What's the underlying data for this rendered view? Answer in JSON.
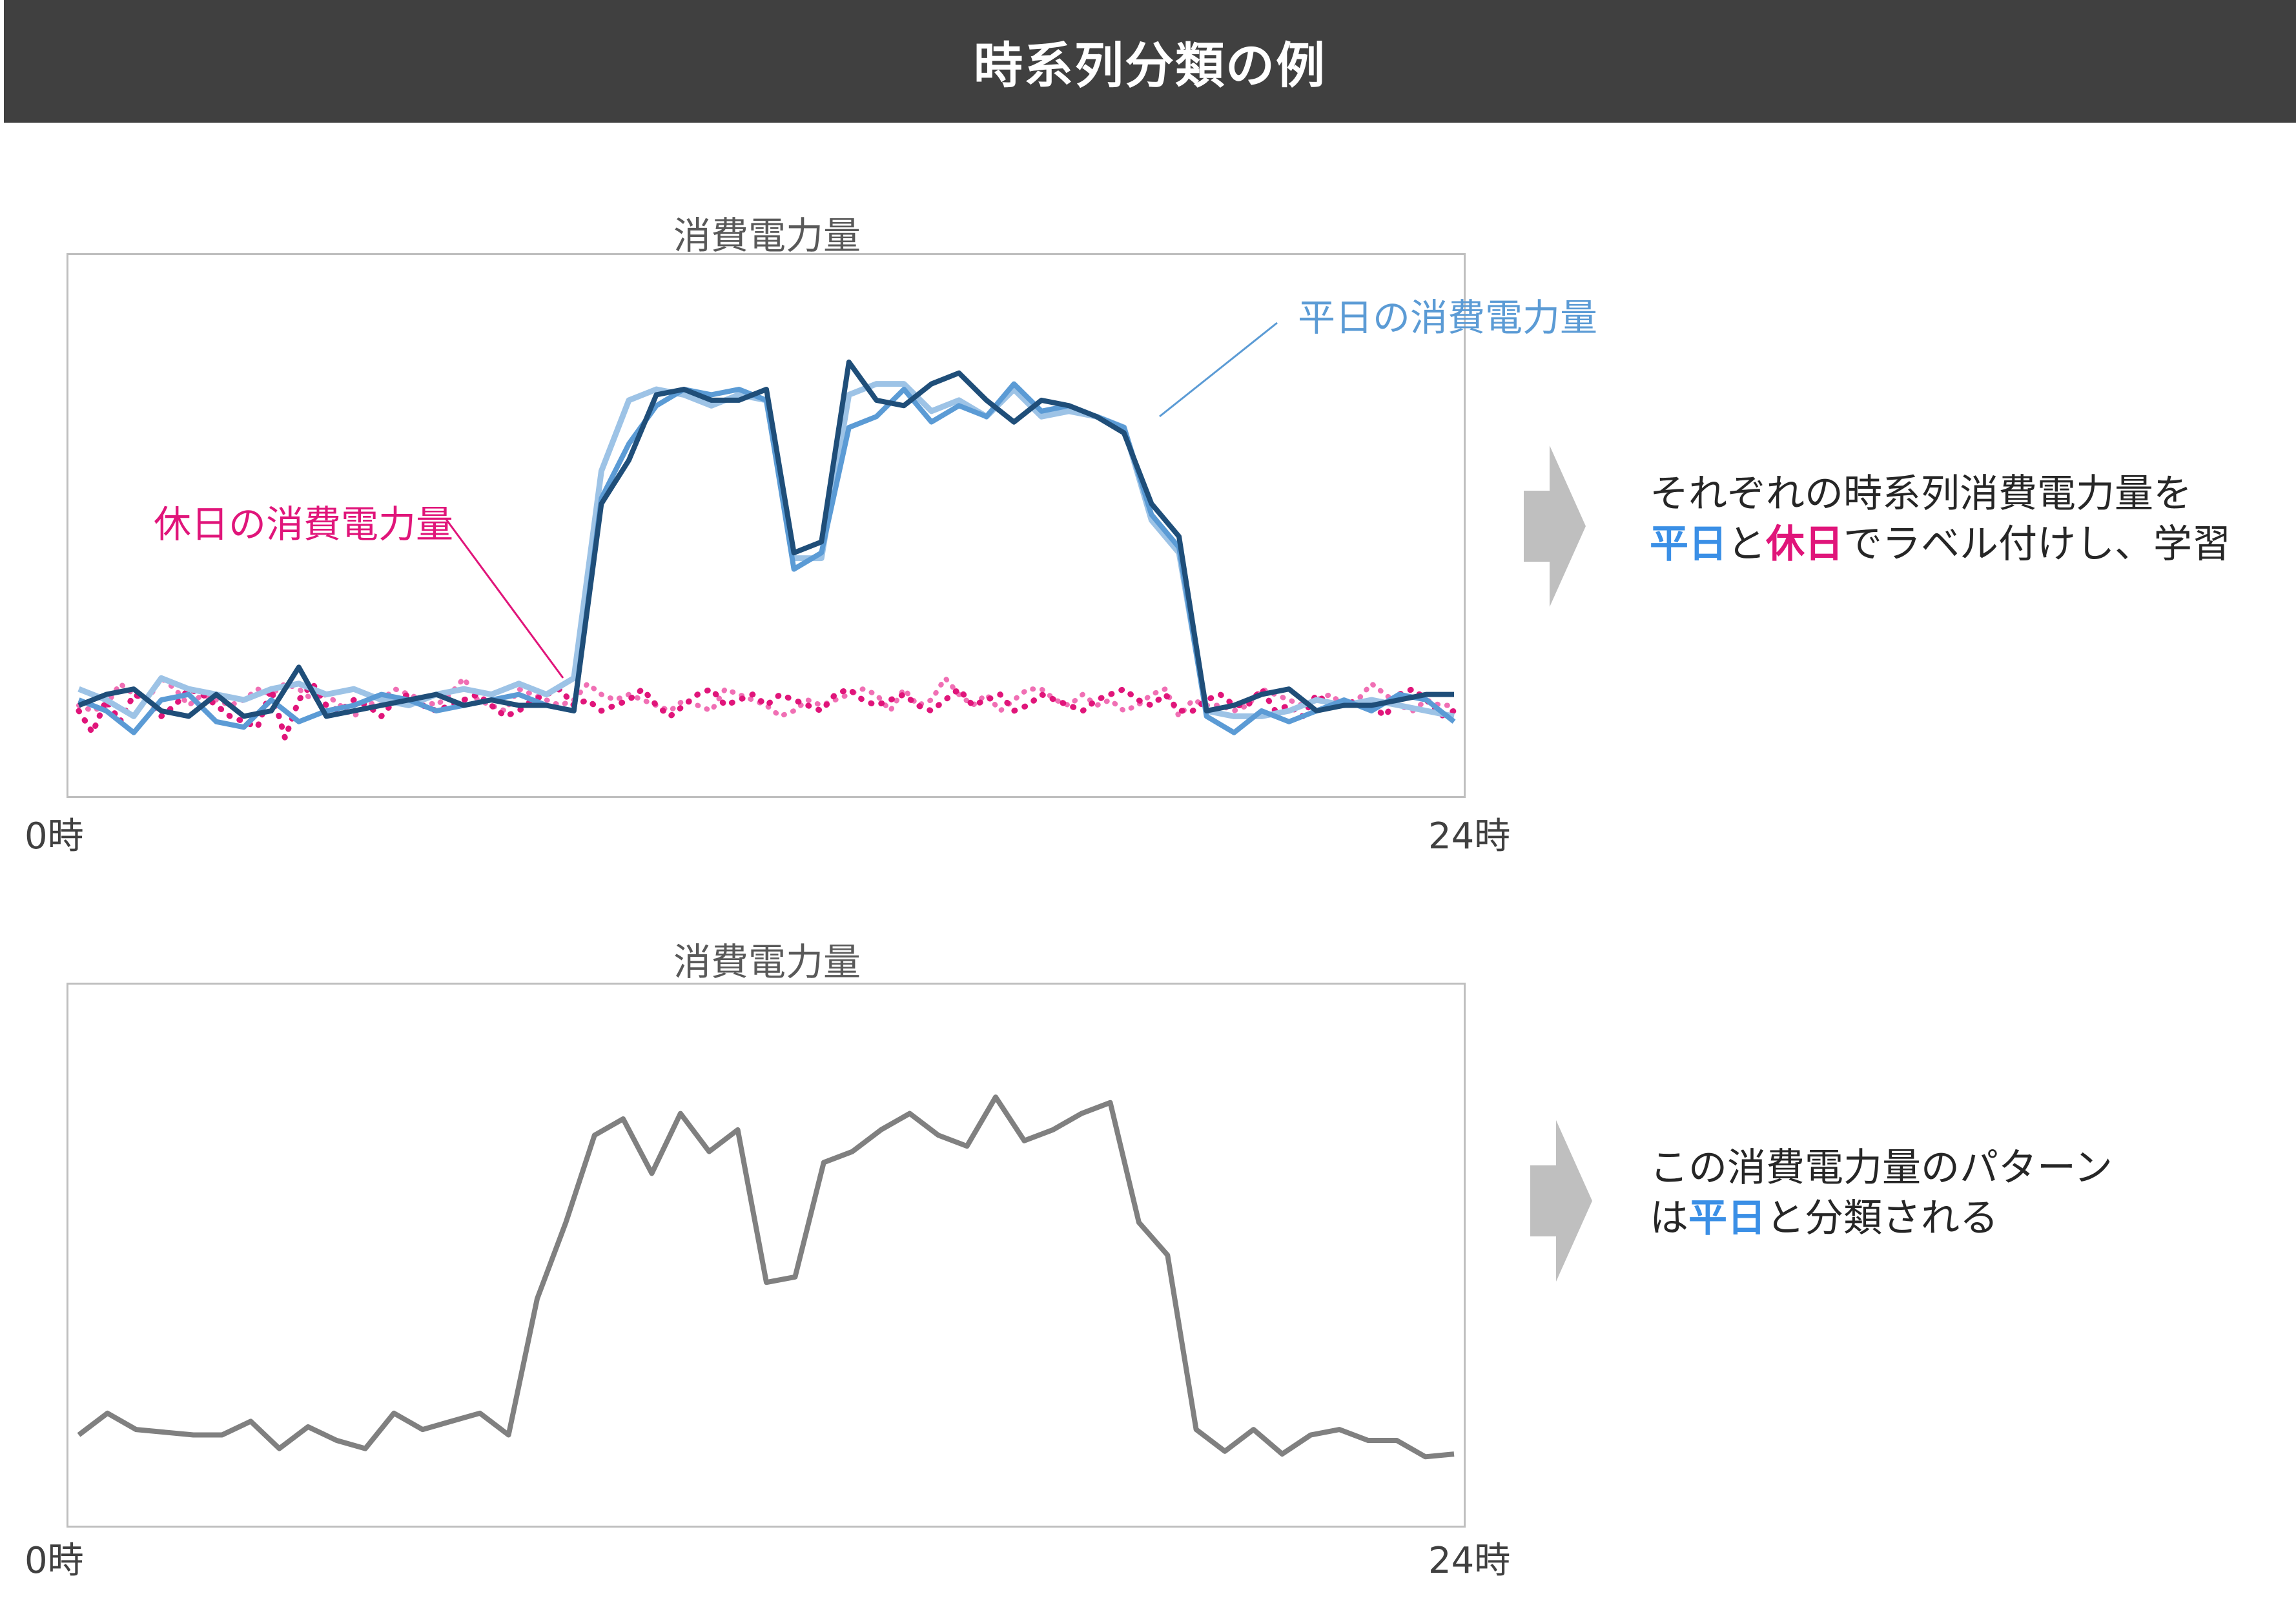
{
  "page": {
    "title": "時系列分類の例"
  },
  "colors": {
    "header_bg": "#404040",
    "weekday_dark": "#1f4e79",
    "weekday_mid": "#5b9bd5",
    "weekday_light": "#9dc3e6",
    "holiday_dark": "#e0157a",
    "holiday_light": "#f06fb4",
    "unknown": "#808080",
    "arrow": "#bfbfbf",
    "highlight_weekday": "#3a8fe6",
    "highlight_holiday": "#e0157a"
  },
  "chart_data": [
    {
      "type": "line",
      "title": "消費電力量",
      "x_start_label": "0時",
      "x_end_label": "24時",
      "legend_weekday": "平日の消費電力量",
      "legend_holiday": "休日の消費電力量",
      "x_range": [
        0,
        24
      ],
      "y_range": [
        0,
        100
      ],
      "grid": false,
      "series": [
        {
          "name": "平日の消費電力量",
          "style": "light",
          "values": [
            20,
            18,
            15,
            22,
            20,
            19,
            18,
            20,
            21,
            19,
            20,
            18,
            17,
            19,
            20,
            19,
            21,
            19,
            22,
            60,
            73,
            75,
            74,
            72,
            74,
            73,
            44,
            44,
            74,
            76,
            76,
            71,
            73,
            70,
            75,
            70,
            71,
            70,
            68,
            51,
            45,
            16,
            15,
            15,
            16,
            18,
            17,
            18,
            17,
            16,
            15
          ]
        },
        {
          "name": "平日の消費電力量",
          "style": "mid",
          "values": [
            18,
            16,
            12,
            18,
            19,
            14,
            13,
            18,
            14,
            16,
            17,
            19,
            18,
            16,
            17,
            18,
            19,
            17,
            16,
            55,
            65,
            72,
            75,
            74,
            75,
            73,
            42,
            45,
            68,
            70,
            75,
            69,
            72,
            70,
            76,
            71,
            72,
            70,
            68,
            52,
            46,
            15,
            12,
            16,
            14,
            16,
            18,
            16,
            19,
            18,
            14
          ]
        },
        {
          "name": "平日の消費電力量",
          "style": "dark",
          "values": [
            17,
            19,
            20,
            16,
            15,
            19,
            15,
            16,
            24,
            15,
            16,
            17,
            18,
            19,
            17,
            18,
            17,
            17,
            16,
            54,
            62,
            74,
            75,
            73,
            73,
            75,
            45,
            47,
            80,
            73,
            72,
            76,
            78,
            73,
            69,
            73,
            72,
            70,
            67,
            54,
            48,
            16,
            17,
            19,
            20,
            16,
            17,
            17,
            18,
            19,
            19
          ]
        }
      ],
      "holiday_series": [
        {
          "name": "休日の消費電力量",
          "style": "light",
          "values": [
            17,
            16,
            17,
            21,
            19,
            18,
            22,
            20,
            17,
            19,
            18,
            17,
            18,
            20,
            19,
            21,
            20,
            18,
            19,
            17,
            15,
            17,
            18,
            20,
            19,
            18,
            17,
            19,
            22,
            18,
            17,
            16,
            20,
            19,
            18,
            17,
            18,
            21,
            19,
            18,
            19,
            18,
            17,
            16,
            18,
            17,
            16,
            20,
            19,
            18,
            17,
            15,
            16,
            18,
            17,
            18,
            19,
            20,
            19,
            16,
            20,
            17,
            18,
            22,
            19,
            17,
            19,
            16,
            18,
            20,
            20,
            18,
            17,
            19,
            17,
            18,
            16,
            17,
            19,
            20,
            15,
            18,
            17,
            17,
            16,
            17,
            20,
            19,
            18,
            17,
            18,
            19,
            17,
            18,
            21,
            19,
            17,
            16,
            18,
            17,
            17
          ]
        },
        {
          "name": "休日の消費電力量",
          "style": "dark",
          "values": [
            16,
            12,
            18,
            14,
            19,
            18,
            15,
            17,
            20,
            19,
            17,
            15,
            14,
            13,
            20,
            11,
            18,
            21,
            17,
            16,
            18,
            17,
            15,
            18,
            19,
            17,
            16,
            17,
            18,
            19,
            17,
            15,
            16,
            18,
            19,
            20,
            17,
            18,
            16,
            17,
            18,
            20,
            17,
            15,
            17,
            19,
            20,
            17,
            18,
            19,
            17,
            19,
            18,
            17,
            16,
            19,
            20,
            18,
            17,
            18,
            19,
            17,
            16,
            18,
            20,
            17,
            18,
            19,
            16,
            17,
            19,
            18,
            17,
            16,
            18,
            19,
            20,
            18,
            17,
            19,
            16,
            16,
            18,
            19,
            17,
            17,
            20,
            16,
            17,
            15,
            19,
            17,
            17,
            18,
            17,
            15,
            19,
            20,
            18,
            15,
            16
          ]
        }
      ]
    },
    {
      "type": "line",
      "title": "消費電力量",
      "x_start_label": "0時",
      "x_end_label": "24時",
      "x_range": [
        0,
        24
      ],
      "y_range": [
        0,
        100
      ],
      "grid": false,
      "series": [
        {
          "name": "",
          "style": "gray",
          "values": [
            17,
            21,
            18,
            17.5,
            17,
            17,
            19.5,
            14.5,
            18.5,
            16,
            14.5,
            21,
            18,
            19.5,
            21,
            17,
            42,
            56,
            72,
            75,
            65,
            76,
            69,
            73,
            45,
            46,
            67,
            69,
            73,
            76,
            72,
            70,
            79,
            71,
            73,
            76,
            78,
            56,
            50,
            18,
            14,
            18,
            13.5,
            17,
            18,
            16,
            16,
            13,
            13.5
          ]
        }
      ]
    }
  ],
  "descriptions": {
    "top": {
      "line1": "それぞれの時系列消費電力量を",
      "line2_weekday": "平日",
      "line2_and": "と",
      "line2_holiday": "休日",
      "line2_rest": "でラベル付けし、学習"
    },
    "bottom": {
      "line1": "この消費電力量のパターン",
      "line2_prefix": "は",
      "line2_weekday": "平日",
      "line2_rest": "と分類される"
    }
  }
}
